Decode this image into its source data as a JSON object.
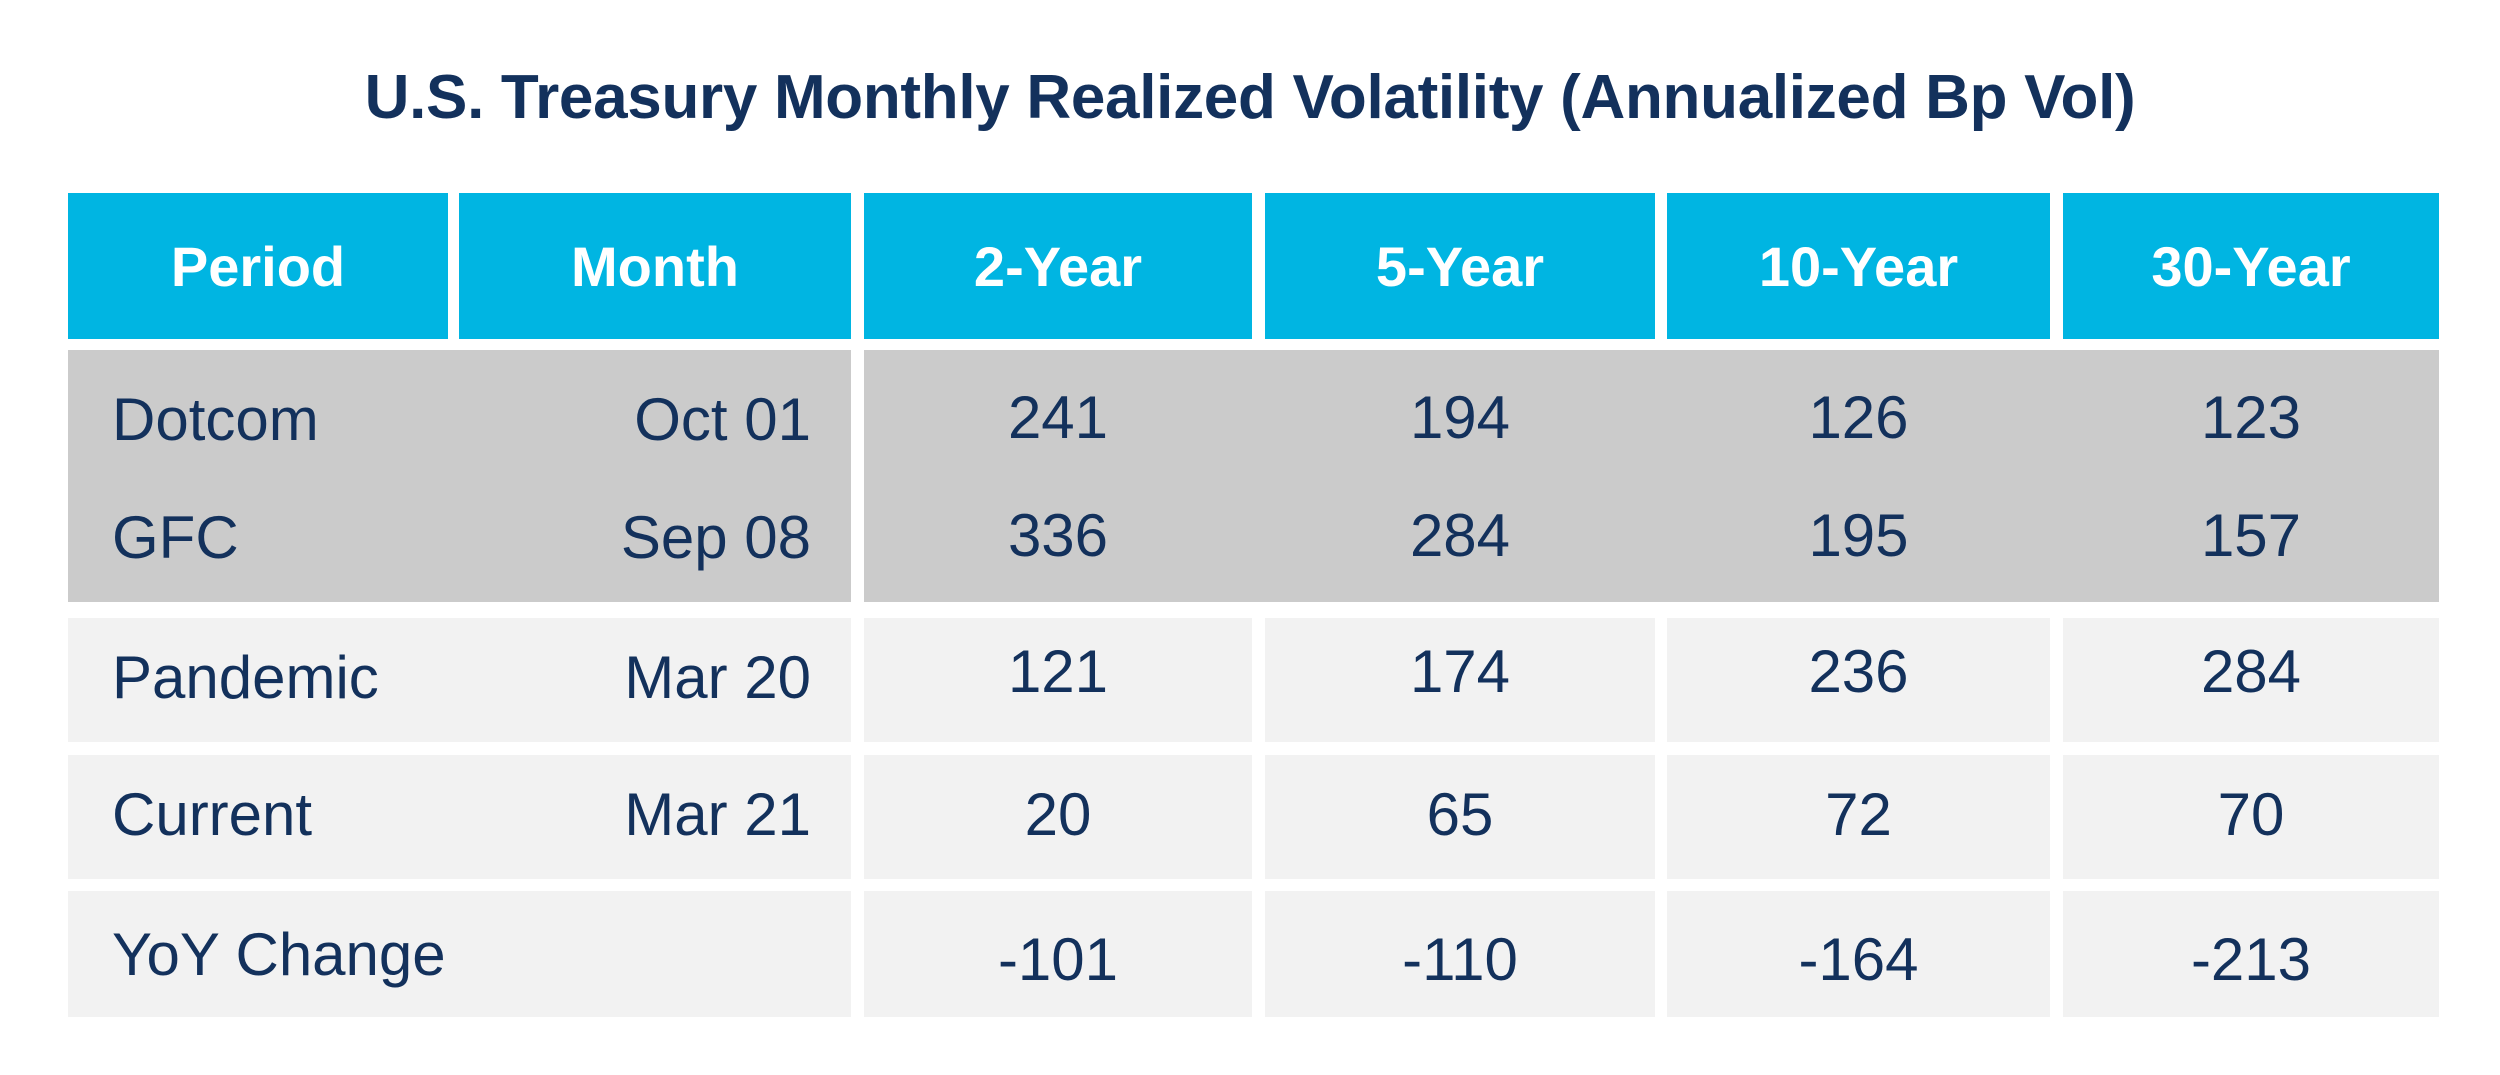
{
  "chart_data": {
    "type": "table",
    "title": "U.S. Treasury Monthly Realized Volatility (Annualized Bp Vol)",
    "columns": [
      "Period",
      "Month",
      "2-Year",
      "5-Year",
      "10-Year",
      "30-Year"
    ],
    "rows": [
      {
        "period": "Dotcom",
        "month": "Oct 01",
        "values": [
          "241",
          "194",
          "126",
          "123"
        ]
      },
      {
        "period": "GFC",
        "month": "Sep 08",
        "values": [
          "336",
          "284",
          "195",
          "157"
        ]
      },
      {
        "period": "Pandemic",
        "month": "Mar 20",
        "values": [
          "121",
          "174",
          "236",
          "284"
        ]
      },
      {
        "period": "Current",
        "month": "Mar 21",
        "values": [
          "20",
          "65",
          "72",
          "70"
        ]
      },
      {
        "period": "YoY Change",
        "month": "",
        "values": [
          "-101",
          "-110",
          "-164",
          "-213"
        ]
      }
    ],
    "colors": {
      "header_bg": "#00b5e2",
      "header_text": "#ffffff",
      "highlight_bg": "#cbcbcb",
      "row_bg": "#f2f2f2",
      "text": "#13315c"
    }
  }
}
